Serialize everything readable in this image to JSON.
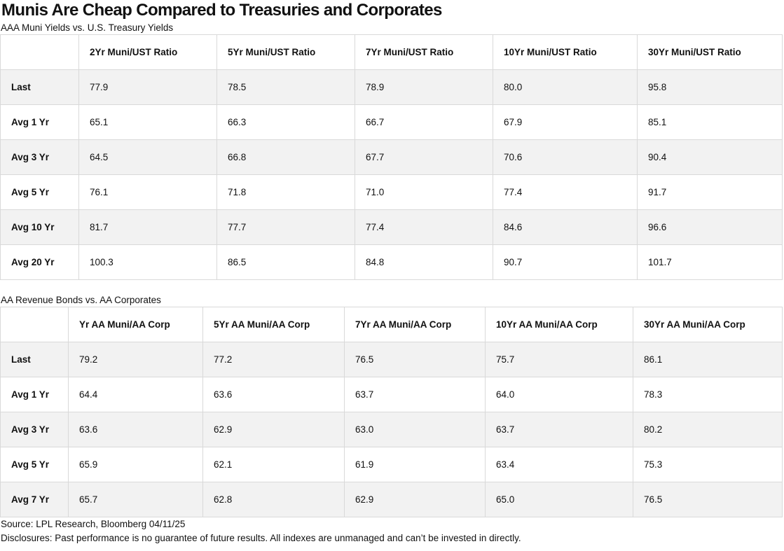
{
  "title": "Munis Are Cheap Compared to Treasuries and Corporates",
  "table1": {
    "subtitle": "AAA Muni Yields vs. U.S. Treasury Yields",
    "headers": [
      "",
      "2Yr Muni/UST Ratio",
      "5Yr Muni/UST Ratio",
      "7Yr Muni/UST Ratio",
      "10Yr Muni/UST Ratio",
      "30Yr Muni/UST Ratio"
    ],
    "rows": [
      [
        "Last",
        "77.9",
        "78.5",
        "78.9",
        "80.0",
        "95.8"
      ],
      [
        "Avg 1 Yr",
        "65.1",
        "66.3",
        "66.7",
        "67.9",
        "85.1"
      ],
      [
        "Avg 3 Yr",
        "64.5",
        "66.8",
        "67.7",
        "70.6",
        "90.4"
      ],
      [
        "Avg 5 Yr",
        "76.1",
        "71.8",
        "71.0",
        "77.4",
        "91.7"
      ],
      [
        "Avg 10 Yr",
        "81.7",
        "77.7",
        "77.4",
        "84.6",
        "96.6"
      ],
      [
        "Avg 20 Yr",
        "100.3",
        "86.5",
        "84.8",
        "90.7",
        "101.7"
      ]
    ]
  },
  "table2": {
    "subtitle": "AA Revenue Bonds vs. AA Corporates",
    "headers": [
      "",
      "Yr AA Muni/AA Corp",
      "5Yr AA Muni/AA Corp",
      "7Yr AA Muni/AA Corp",
      "10Yr AA Muni/AA Corp",
      "30Yr AA Muni/AA Corp"
    ],
    "rows": [
      [
        "Last",
        "79.2",
        "77.2",
        "76.5",
        "75.7",
        "86.1"
      ],
      [
        "Avg 1 Yr",
        "64.4",
        "63.6",
        "63.7",
        "64.0",
        "78.3"
      ],
      [
        "Avg 3 Yr",
        "63.6",
        "62.9",
        "63.0",
        "63.7",
        "80.2"
      ],
      [
        "Avg 5 Yr",
        "65.9",
        "62.1",
        "61.9",
        "63.4",
        "75.3"
      ],
      [
        "Avg 7 Yr",
        "65.7",
        "62.8",
        "62.9",
        "65.0",
        "76.5"
      ]
    ]
  },
  "footer": {
    "source": "Source: LPL Research, Bloomberg 04/11/25",
    "disclosures": "Disclosures: Past performance is no guarantee of future results. All indexes are unmanaged and can’t be invested in directly."
  }
}
